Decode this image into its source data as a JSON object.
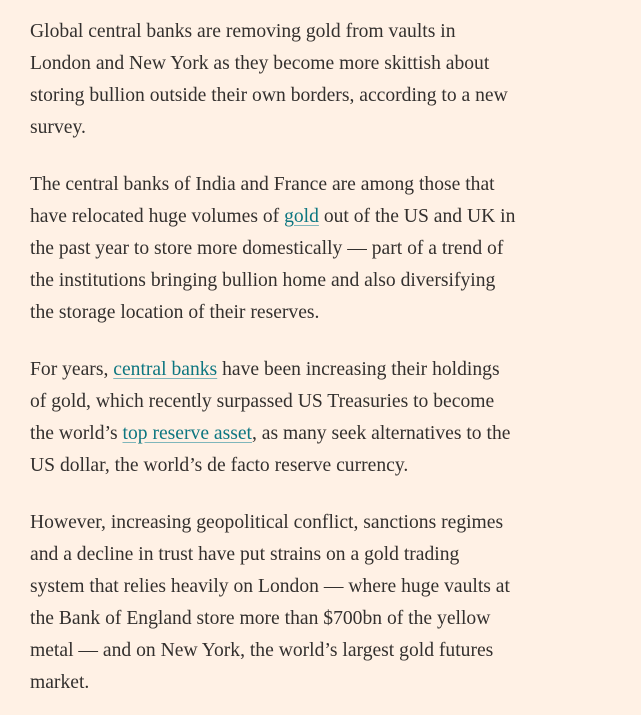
{
  "paragraphs": [
    [
      [
        {
          "text": "Global central banks are removing gold from vaults in"
        }
      ],
      [
        {
          "text": "London and New York as they become more skittish about"
        }
      ],
      [
        {
          "text": "storing bullion outside their own borders, according to a new"
        }
      ],
      [
        {
          "text": "survey."
        }
      ]
    ],
    [
      [
        {
          "text": "The central banks of India and France are among those that"
        }
      ],
      [
        {
          "text": "have relocated huge volumes of "
        },
        {
          "link": "gold"
        },
        {
          "text": " out of the US and UK in"
        }
      ],
      [
        {
          "text": "the past year to store more domestically — part of a trend of"
        }
      ],
      [
        {
          "text": "the institutions bringing bullion home and also diversifying"
        }
      ],
      [
        {
          "text": "the storage location of their reserves."
        }
      ]
    ],
    [
      [
        {
          "text": "For years, "
        },
        {
          "link": "central banks"
        },
        {
          "text": " have been increasing their holdings"
        }
      ],
      [
        {
          "text": "of gold, which recently surpassed US Treasuries to become"
        }
      ],
      [
        {
          "text": "the world’s "
        },
        {
          "link": "top reserve asset"
        },
        {
          "text": ", as many seek alternatives to the"
        }
      ],
      [
        {
          "text": "US dollar, the world’s de facto reserve currency."
        }
      ]
    ],
    [
      [
        {
          "text": "However, increasing geopolitical conflict, sanctions regimes"
        }
      ],
      [
        {
          "text": "and a decline in trust have put strains on a gold trading"
        }
      ],
      [
        {
          "text": "system that relies heavily on London — where huge vaults at"
        }
      ],
      [
        {
          "text": "the Bank of England store more than $700bn of the yellow"
        }
      ],
      [
        {
          "text": "metal — and on New York, the world’s largest gold futures"
        }
      ],
      [
        {
          "text": "market."
        }
      ]
    ]
  ]
}
